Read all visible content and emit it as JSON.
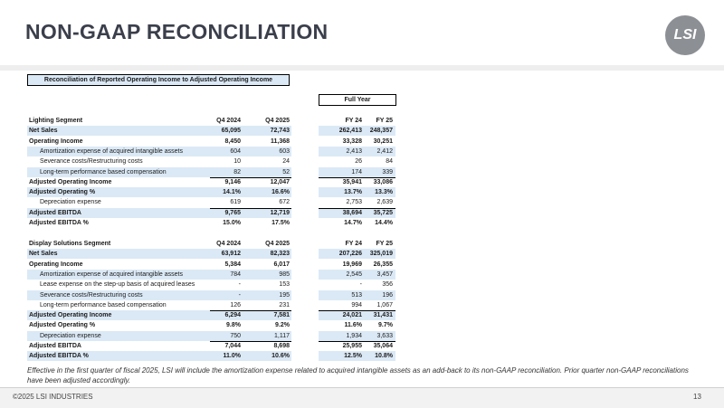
{
  "header": {
    "title": "NON-GAAP RECONCILIATION",
    "logo": "LSI"
  },
  "table": {
    "caption": "Reconciliation of Reported Operating Income to Adjusted Operating Income",
    "period_group": "Full Year",
    "segments": [
      {
        "header": [
          "Lighting Segment",
          "Q4 2024",
          "Q4 2025",
          "FY 24",
          "FY 25"
        ],
        "rows": [
          [
            "Net Sales",
            "65,095",
            "72,743",
            "262,413",
            "248,357"
          ],
          [
            "Operating Income",
            "8,450",
            "11,368",
            "33,328",
            "30,251"
          ],
          [
            "Amortization expense of acquired intangible assets",
            "604",
            "603",
            "2,413",
            "2,412"
          ],
          [
            "Severance costs/Restructuring costs",
            "10",
            "24",
            "26",
            "84"
          ],
          [
            "Long-term performance based compensation",
            "82",
            "52",
            "174",
            "339"
          ],
          [
            "Adjusted Operating Income",
            "9,146",
            "12,047",
            "35,941",
            "33,086"
          ],
          [
            "Adjusted Operating %",
            "14.1%",
            "16.6%",
            "13.7%",
            "13.3%"
          ],
          [
            "Depreciation expense",
            "619",
            "672",
            "2,753",
            "2,639"
          ],
          [
            "Adjusted EBITDA",
            "9,765",
            "12,719",
            "38,694",
            "35,725"
          ],
          [
            "Adjusted EBITDA %",
            "15.0%",
            "17.5%",
            "14.7%",
            "14.4%"
          ]
        ]
      },
      {
        "header": [
          "Display Solutions Segment",
          "Q4 2024",
          "Q4 2025",
          "FY 24",
          "FY 25"
        ],
        "rows": [
          [
            "Net Sales",
            "63,912",
            "82,323",
            "207,226",
            "325,019"
          ],
          [
            "Operating Income",
            "5,384",
            "6,017",
            "19,969",
            "26,355"
          ],
          [
            "Amortization expense of acquired intangible assets",
            "784",
            "985",
            "2,545",
            "3,457"
          ],
          [
            "Lease expense on the step-up basis of acquired leases",
            "-",
            "153",
            "-",
            "356"
          ],
          [
            "Severance costs/Restructuring costs",
            "-",
            "195",
            "513",
            "196"
          ],
          [
            "Long-term performance based compensation",
            "126",
            "231",
            "994",
            "1,067"
          ],
          [
            "Adjusted Operating Income",
            "6,294",
            "7,581",
            "24,021",
            "31,431"
          ],
          [
            "Adjusted Operating %",
            "9.8%",
            "9.2%",
            "11.6%",
            "9.7%"
          ],
          [
            "Depreciation expense",
            "750",
            "1,117",
            "1,934",
            "3,633"
          ],
          [
            "Adjusted EBITDA",
            "7,044",
            "8,698",
            "25,955",
            "35,064"
          ],
          [
            "Adjusted EBITDA %",
            "11.0%",
            "10.6%",
            "12.5%",
            "10.8%"
          ]
        ]
      }
    ]
  },
  "footnote": "Effective in the first quarter of fiscal 2025, LSI will include the amortization expense related to acquired intangible assets as an add-back to its non-GAAP reconciliation.  Prior quarter non-GAAP reconciliations have been adjusted accordingly.",
  "footer": {
    "copyright": "©2025 LSI INDUSTRIES",
    "page": "13"
  }
}
